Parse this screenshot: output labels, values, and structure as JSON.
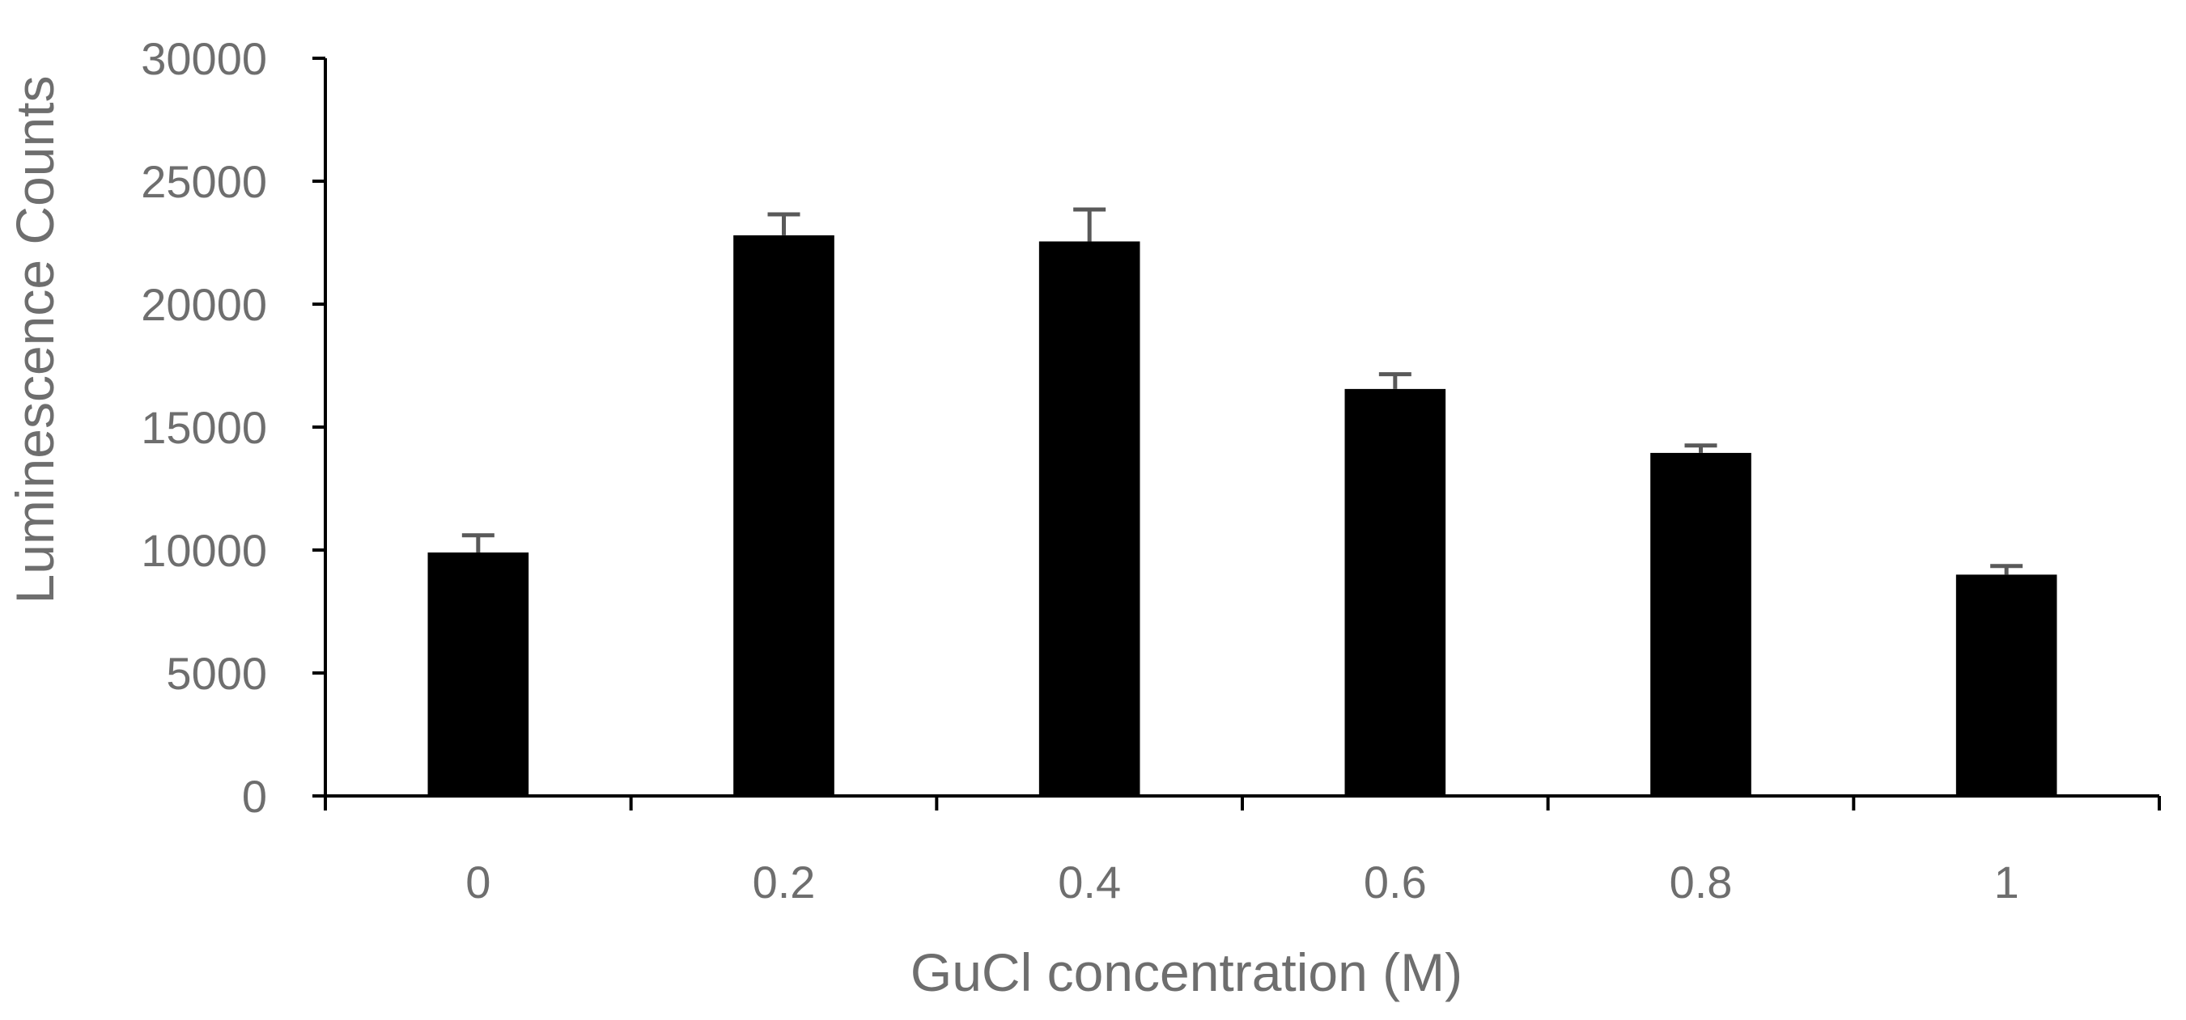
{
  "chart_data": {
    "type": "bar",
    "title": "",
    "xlabel": "GuCl concentration (M)",
    "ylabel": "Luminescence Counts",
    "categories": [
      "0",
      "0.2",
      "0.4",
      "0.6",
      "0.8",
      "1"
    ],
    "series": [
      {
        "values": [
          9900,
          22800,
          22550,
          16550,
          13950,
          9000
        ],
        "error_plus": [
          700,
          850,
          1300,
          600,
          300,
          350
        ]
      }
    ],
    "ylim": [
      0,
      30000
    ],
    "yticks": [
      "0",
      "5000",
      "10000",
      "15000",
      "20000",
      "25000",
      "30000"
    ],
    "grid": false,
    "legend": "none",
    "colors": {
      "bar": "#000000",
      "error_bar": "#595959",
      "axis": "#000000",
      "text": "#6e6e6e"
    }
  }
}
